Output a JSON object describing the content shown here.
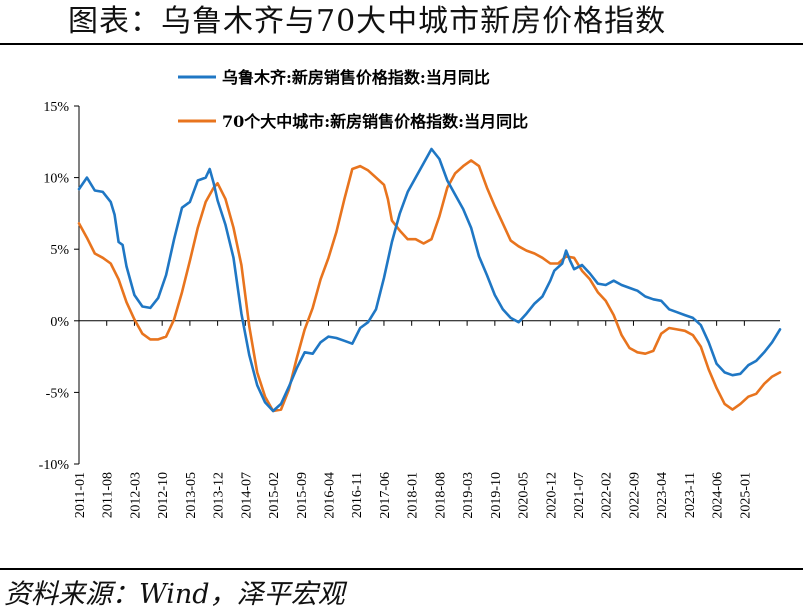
{
  "title": "图表：乌鲁木齐与70大中城市新房价格指数",
  "source": "资料来源：Wind，泽平宏观",
  "colors": {
    "series1": "#1f77c4",
    "series2": "#e8741e",
    "axis": "#000000"
  },
  "chart_data": {
    "type": "line",
    "title": "",
    "xlabel": "",
    "ylabel": "",
    "ylim": [
      -10,
      15
    ],
    "yticks": [
      "15%",
      "10%",
      "5%",
      "0%",
      "-5%",
      "-10%"
    ],
    "ytick_values": [
      15,
      10,
      5,
      0,
      -5,
      -10
    ],
    "xlim": [
      "2011-01",
      "2025-10"
    ],
    "xticks": [
      "2011-01",
      "2011-08",
      "2012-03",
      "2012-10",
      "2013-05",
      "2013-12",
      "2014-07",
      "2015-02",
      "2015-09",
      "2016-04",
      "2016-11",
      "2017-06",
      "2018-01",
      "2018-08",
      "2019-03",
      "2019-10",
      "2020-05",
      "2020-12",
      "2021-07",
      "2022-02",
      "2022-09",
      "2023-04",
      "2023-11",
      "2024-06",
      "2025-01"
    ],
    "grid": false,
    "legend_position": "top",
    "series": [
      {
        "name": "乌鲁木齐:新房销售价格指数:当月同比",
        "color": "#1f77c4",
        "points": [
          [
            "2011-01",
            9.2
          ],
          [
            "2011-03",
            10.0
          ],
          [
            "2011-05",
            9.1
          ],
          [
            "2011-07",
            9.0
          ],
          [
            "2011-09",
            8.3
          ],
          [
            "2011-10",
            7.4
          ],
          [
            "2011-11",
            5.5
          ],
          [
            "2011-12",
            5.3
          ],
          [
            "2012-01",
            3.8
          ],
          [
            "2012-03",
            1.8
          ],
          [
            "2012-05",
            1.0
          ],
          [
            "2012-07",
            0.9
          ],
          [
            "2012-09",
            1.6
          ],
          [
            "2012-11",
            3.2
          ],
          [
            "2013-01",
            5.7
          ],
          [
            "2013-03",
            7.9
          ],
          [
            "2013-05",
            8.3
          ],
          [
            "2013-07",
            9.8
          ],
          [
            "2013-09",
            10.0
          ],
          [
            "2013-10",
            10.6
          ],
          [
            "2013-11",
            9.6
          ],
          [
            "2013-12",
            8.4
          ],
          [
            "2014-02",
            6.7
          ],
          [
            "2014-04",
            4.4
          ],
          [
            "2014-06",
            0.5
          ],
          [
            "2014-08",
            -2.4
          ],
          [
            "2014-10",
            -4.5
          ],
          [
            "2014-12",
            -5.7
          ],
          [
            "2015-02",
            -6.3
          ],
          [
            "2015-04",
            -5.8
          ],
          [
            "2015-06",
            -4.6
          ],
          [
            "2015-08",
            -3.3
          ],
          [
            "2015-10",
            -2.2
          ],
          [
            "2015-12",
            -2.3
          ],
          [
            "2016-02",
            -1.5
          ],
          [
            "2016-04",
            -1.1
          ],
          [
            "2016-06",
            -1.2
          ],
          [
            "2016-08",
            -1.4
          ],
          [
            "2016-10",
            -1.6
          ],
          [
            "2016-12",
            -0.5
          ],
          [
            "2017-02",
            -0.1
          ],
          [
            "2017-04",
            0.8
          ],
          [
            "2017-06",
            3.0
          ],
          [
            "2017-08",
            5.5
          ],
          [
            "2017-10",
            7.5
          ],
          [
            "2017-12",
            9.0
          ],
          [
            "2018-02",
            10.0
          ],
          [
            "2018-04",
            11.0
          ],
          [
            "2018-06",
            12.0
          ],
          [
            "2018-08",
            11.3
          ],
          [
            "2018-10",
            9.8
          ],
          [
            "2018-12",
            8.8
          ],
          [
            "2019-02",
            7.8
          ],
          [
            "2019-04",
            6.5
          ],
          [
            "2019-06",
            4.5
          ],
          [
            "2019-08",
            3.2
          ],
          [
            "2019-10",
            1.8
          ],
          [
            "2019-12",
            0.8
          ],
          [
            "2020-02",
            0.2
          ],
          [
            "2020-04",
            -0.1
          ],
          [
            "2020-06",
            0.5
          ],
          [
            "2020-08",
            1.2
          ],
          [
            "2020-10",
            1.7
          ],
          [
            "2020-12",
            2.8
          ],
          [
            "2021-01",
            3.5
          ],
          [
            "2021-03",
            4.0
          ],
          [
            "2021-04",
            4.9
          ],
          [
            "2021-05",
            4.2
          ],
          [
            "2021-06",
            3.6
          ],
          [
            "2021-08",
            3.9
          ],
          [
            "2021-10",
            3.3
          ],
          [
            "2021-12",
            2.6
          ],
          [
            "2022-02",
            2.5
          ],
          [
            "2022-04",
            2.8
          ],
          [
            "2022-06",
            2.5
          ],
          [
            "2022-08",
            2.3
          ],
          [
            "2022-10",
            2.1
          ],
          [
            "2022-12",
            1.7
          ],
          [
            "2023-02",
            1.5
          ],
          [
            "2023-04",
            1.4
          ],
          [
            "2023-06",
            0.8
          ],
          [
            "2023-08",
            0.6
          ],
          [
            "2023-10",
            0.4
          ],
          [
            "2023-12",
            0.2
          ],
          [
            "2024-02",
            -0.3
          ],
          [
            "2024-04",
            -1.5
          ],
          [
            "2024-06",
            -3.0
          ],
          [
            "2024-08",
            -3.6
          ],
          [
            "2024-10",
            -3.8
          ],
          [
            "2024-12",
            -3.7
          ],
          [
            "2025-02",
            -3.1
          ],
          [
            "2025-04",
            -2.8
          ],
          [
            "2025-06",
            -2.2
          ],
          [
            "2025-08",
            -1.5
          ],
          [
            "2025-10",
            -0.6
          ]
        ]
      },
      {
        "name": "70个大中城市:新房销售价格指数:当月同比",
        "color": "#e8741e",
        "points": [
          [
            "2011-01",
            6.8
          ],
          [
            "2011-03",
            5.8
          ],
          [
            "2011-05",
            4.7
          ],
          [
            "2011-07",
            4.4
          ],
          [
            "2011-09",
            4.0
          ],
          [
            "2011-11",
            2.9
          ],
          [
            "2012-01",
            1.3
          ],
          [
            "2012-03",
            0.1
          ],
          [
            "2012-05",
            -0.9
          ],
          [
            "2012-07",
            -1.3
          ],
          [
            "2012-09",
            -1.3
          ],
          [
            "2012-11",
            -1.1
          ],
          [
            "2013-01",
            0.1
          ],
          [
            "2013-03",
            2.0
          ],
          [
            "2013-05",
            4.2
          ],
          [
            "2013-07",
            6.5
          ],
          [
            "2013-09",
            8.3
          ],
          [
            "2013-11",
            9.3
          ],
          [
            "2013-12",
            9.6
          ],
          [
            "2014-02",
            8.5
          ],
          [
            "2014-04",
            6.5
          ],
          [
            "2014-06",
            3.9
          ],
          [
            "2014-08",
            -0.4
          ],
          [
            "2014-10",
            -3.6
          ],
          [
            "2014-12",
            -5.3
          ],
          [
            "2015-02",
            -6.3
          ],
          [
            "2015-04",
            -6.2
          ],
          [
            "2015-06",
            -4.8
          ],
          [
            "2015-08",
            -2.6
          ],
          [
            "2015-10",
            -0.6
          ],
          [
            "2015-12",
            0.9
          ],
          [
            "2016-02",
            2.9
          ],
          [
            "2016-04",
            4.4
          ],
          [
            "2016-06",
            6.2
          ],
          [
            "2016-08",
            8.5
          ],
          [
            "2016-10",
            10.6
          ],
          [
            "2016-12",
            10.8
          ],
          [
            "2017-02",
            10.5
          ],
          [
            "2017-04",
            10.0
          ],
          [
            "2017-06",
            9.5
          ],
          [
            "2017-07",
            8.5
          ],
          [
            "2017-08",
            7.0
          ],
          [
            "2017-10",
            6.3
          ],
          [
            "2017-12",
            5.7
          ],
          [
            "2018-02",
            5.7
          ],
          [
            "2018-04",
            5.4
          ],
          [
            "2018-06",
            5.7
          ],
          [
            "2018-08",
            7.3
          ],
          [
            "2018-10",
            9.3
          ],
          [
            "2018-12",
            10.3
          ],
          [
            "2019-02",
            10.8
          ],
          [
            "2019-04",
            11.2
          ],
          [
            "2019-06",
            10.8
          ],
          [
            "2019-08",
            9.3
          ],
          [
            "2019-10",
            8.0
          ],
          [
            "2019-12",
            6.8
          ],
          [
            "2020-02",
            5.6
          ],
          [
            "2020-04",
            5.2
          ],
          [
            "2020-06",
            4.9
          ],
          [
            "2020-08",
            4.7
          ],
          [
            "2020-10",
            4.4
          ],
          [
            "2020-12",
            4.0
          ],
          [
            "2021-02",
            4.0
          ],
          [
            "2021-04",
            4.5
          ],
          [
            "2021-06",
            4.4
          ],
          [
            "2021-08",
            3.5
          ],
          [
            "2021-10",
            2.9
          ],
          [
            "2021-12",
            2.0
          ],
          [
            "2022-02",
            1.4
          ],
          [
            "2022-04",
            0.4
          ],
          [
            "2022-06",
            -1.0
          ],
          [
            "2022-08",
            -1.9
          ],
          [
            "2022-10",
            -2.2
          ],
          [
            "2022-12",
            -2.3
          ],
          [
            "2023-02",
            -2.1
          ],
          [
            "2023-04",
            -0.9
          ],
          [
            "2023-06",
            -0.5
          ],
          [
            "2023-08",
            -0.6
          ],
          [
            "2023-10",
            -0.7
          ],
          [
            "2023-12",
            -1.0
          ],
          [
            "2024-02",
            -1.8
          ],
          [
            "2024-04",
            -3.4
          ],
          [
            "2024-06",
            -4.7
          ],
          [
            "2024-08",
            -5.8
          ],
          [
            "2024-10",
            -6.2
          ],
          [
            "2024-12",
            -5.8
          ],
          [
            "2025-02",
            -5.3
          ],
          [
            "2025-04",
            -5.1
          ],
          [
            "2025-06",
            -4.4
          ],
          [
            "2025-08",
            -3.9
          ],
          [
            "2025-10",
            -3.6
          ]
        ]
      }
    ]
  }
}
